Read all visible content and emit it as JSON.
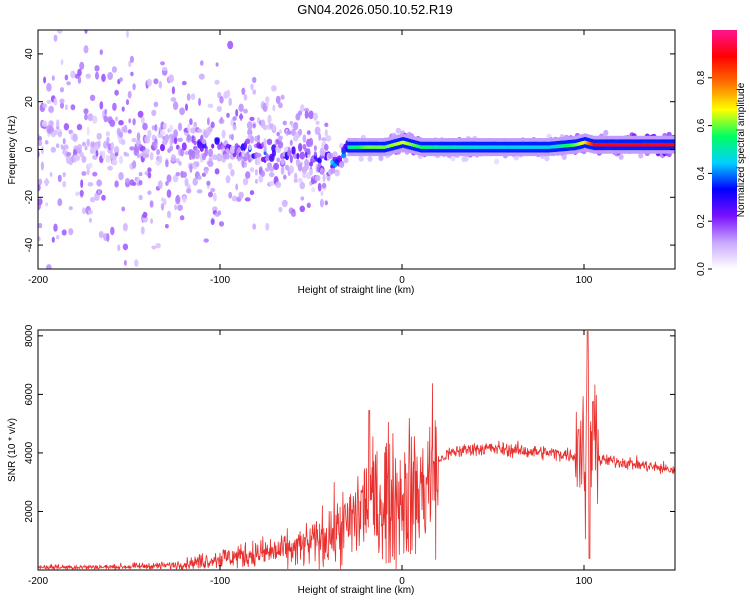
{
  "title": "GN04.2026.050.10.52.R19",
  "chart_data": [
    {
      "type": "heatmap",
      "title": "GN04.2026.050.10.52.R19",
      "xlabel": "Height of straight line (km)",
      "ylabel": "Frequency (Hz)",
      "xlim": [
        -200,
        150
      ],
      "ylim": [
        -50,
        50
      ],
      "x_ticks": [
        "-200",
        "-100",
        "0",
        "100"
      ],
      "y_ticks": [
        "-40",
        "-20",
        "0",
        "20",
        "40"
      ],
      "colorbar": {
        "label": "Normalized spectral amplitude",
        "range": [
          0,
          1
        ],
        "ticks": [
          "0.0",
          "0.2",
          "0.4",
          "0.6",
          "0.8"
        ],
        "colors": [
          "#ffffff",
          "#c9a8ff",
          "#7a10ff",
          "#0000ff",
          "#00d0ff",
          "#00ff60",
          "#ffff00",
          "#ff7000",
          "#ff0000",
          "#ff1493"
        ]
      },
      "ridge": {
        "x": [
          -200,
          -150,
          -120,
          -100,
          -80,
          -60,
          -45,
          -35,
          -30,
          -20,
          -10,
          0,
          10,
          20,
          50,
          80,
          95,
          100,
          105,
          150
        ],
        "frequency_hz": [
          2,
          0,
          2,
          3,
          -1,
          -2,
          -5,
          -6,
          1,
          1,
          1,
          3,
          1,
          1,
          1,
          1,
          2,
          3,
          2,
          2
        ],
        "amplitude": [
          0.12,
          0.15,
          0.25,
          0.3,
          0.35,
          0.3,
          0.3,
          0.5,
          0.5,
          0.6,
          0.6,
          0.65,
          0.55,
          0.5,
          0.45,
          0.45,
          0.6,
          0.7,
          0.9,
          0.9
        ]
      }
    },
    {
      "type": "line",
      "xlabel": "Height of straight line (km)",
      "ylabel": "SNR (10 * v/v)",
      "xlim": [
        -200,
        150
      ],
      "ylim": [
        0,
        8200
      ],
      "x_ticks": [
        "-200",
        "-100",
        "0",
        "100"
      ],
      "y_ticks": [
        "2000",
        "4000",
        "6000",
        "8000"
      ],
      "line_color": "#e8302e",
      "series": [
        {
          "name": "SNR",
          "x": [
            -200,
            -160,
            -130,
            -120,
            -100,
            -80,
            -60,
            -50,
            -40,
            -30,
            -25,
            -20,
            -18,
            -15,
            -10,
            -5,
            0,
            5,
            10,
            15,
            20,
            25,
            30,
            40,
            50,
            60,
            70,
            80,
            90,
            95,
            98,
            100,
            102,
            103,
            104,
            106,
            110,
            120,
            130,
            140,
            150
          ],
          "y": [
            100,
            100,
            150,
            200,
            400,
            550,
            700,
            900,
            1200,
            1500,
            1900,
            2300,
            2500,
            2200,
            2400,
            2500,
            2500,
            2700,
            2600,
            3200,
            3700,
            3950,
            4050,
            4150,
            4150,
            4100,
            4050,
            4000,
            3950,
            3900,
            3950,
            4200,
            3900,
            3850,
            3900,
            3800,
            3750,
            3700,
            3600,
            3500,
            3400
          ]
        }
      ],
      "spikes": [
        {
          "x": -18,
          "y": 5450
        },
        {
          "x": 97,
          "y": 4800
        },
        {
          "x": 102,
          "y": 8150
        },
        {
          "x": 103,
          "y": 400
        },
        {
          "x": 105,
          "y": 5750
        }
      ]
    }
  ]
}
